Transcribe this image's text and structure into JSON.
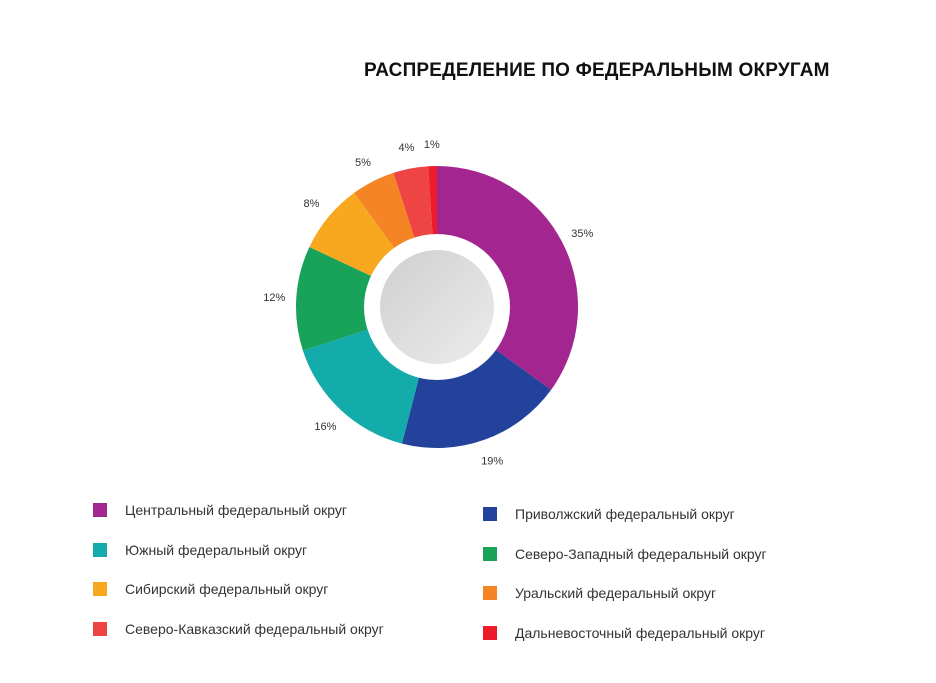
{
  "chart_data": {
    "type": "pie",
    "variant": "donut",
    "title": "РАСПРЕДЕЛЕНИЕ ПО ФЕДЕРАЛЬНЫМ ОКРУГАМ",
    "legend_position": "bottom",
    "slices": [
      {
        "name": "Центральный федеральный округ",
        "value": 35,
        "label": "35%",
        "color": "#a3258f"
      },
      {
        "name": "Приволжский федеральный округ",
        "value": 19,
        "label": "19%",
        "color": "#22429c"
      },
      {
        "name": "Южный федеральный округ",
        "value": 16,
        "label": "16%",
        "color": "#14abab"
      },
      {
        "name": "Северо-Западный федеральный округ",
        "value": 12,
        "label": "12%",
        "color": "#18a25a"
      },
      {
        "name": "Сибирский федеральный округ",
        "value": 8,
        "label": "8%",
        "color": "#f7a81e"
      },
      {
        "name": "Уральский федеральный округ",
        "value": 5,
        "label": "5%",
        "color": "#f48424"
      },
      {
        "name": "Северо-Кавказский федеральный округ",
        "value": 4,
        "label": "4%",
        "color": "#ee4444"
      },
      {
        "name": "Дальневосточный федеральный округ",
        "value": 1,
        "label": "1%",
        "color": "#ec1c2a"
      }
    ]
  }
}
